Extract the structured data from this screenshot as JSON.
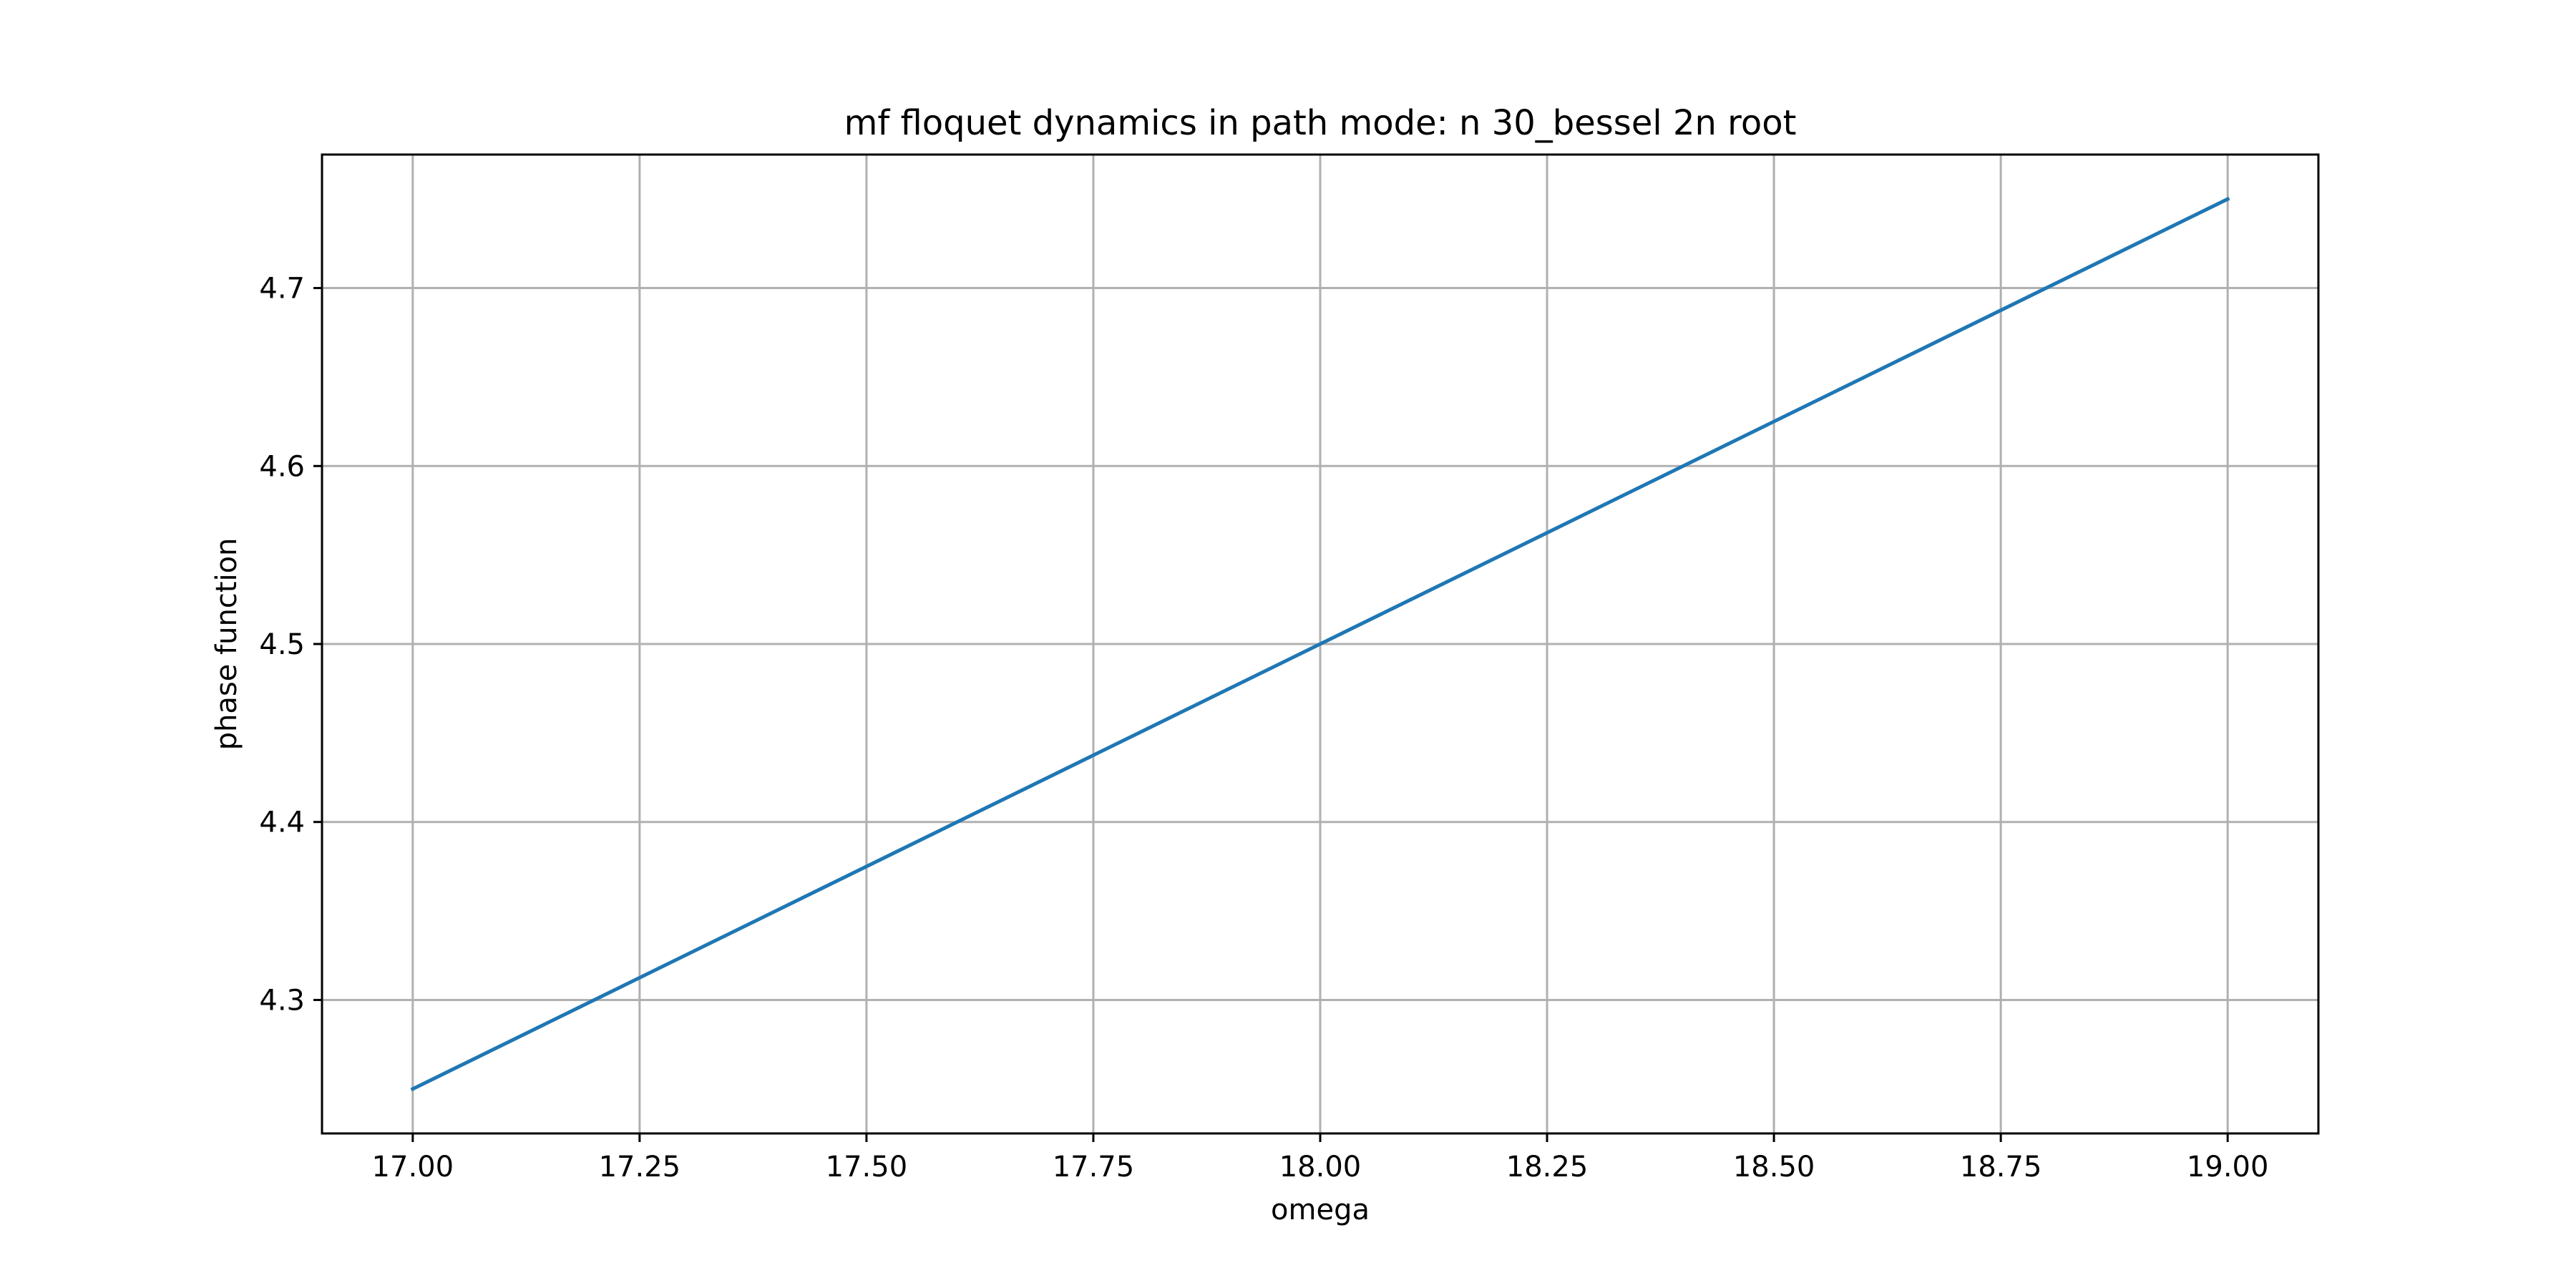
{
  "chart_data": {
    "type": "line",
    "title": "mf floquet dynamics in path mode: n 30_bessel 2n root",
    "xlabel": "omega",
    "ylabel": "phase function",
    "xlim": [
      16.9,
      19.1
    ],
    "ylim": [
      4.225,
      4.775
    ],
    "grid": true,
    "x_ticks": [
      17.0,
      17.25,
      17.5,
      17.75,
      18.0,
      18.25,
      18.5,
      18.75,
      19.0
    ],
    "x_tick_labels": [
      "17.00",
      "17.25",
      "17.50",
      "17.75",
      "18.00",
      "18.25",
      "18.50",
      "18.75",
      "19.00"
    ],
    "y_ticks": [
      4.3,
      4.4,
      4.5,
      4.6,
      4.7
    ],
    "y_tick_labels": [
      "4.3",
      "4.4",
      "4.5",
      "4.6",
      "4.7"
    ],
    "series": [
      {
        "color": "#1f77b4",
        "x": [
          17.0,
          19.0
        ],
        "y": [
          4.25,
          4.75
        ]
      }
    ]
  }
}
